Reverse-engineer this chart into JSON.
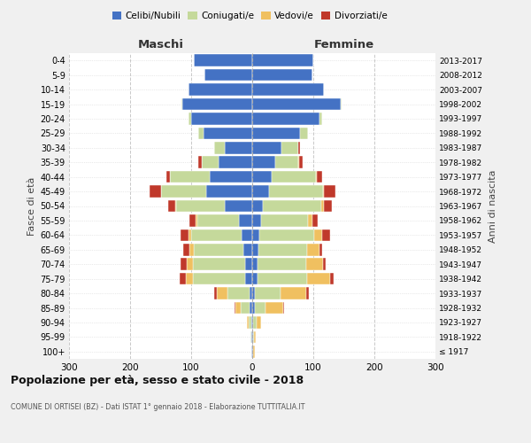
{
  "age_groups": [
    "100+",
    "95-99",
    "90-94",
    "85-89",
    "80-84",
    "75-79",
    "70-74",
    "65-69",
    "60-64",
    "55-59",
    "50-54",
    "45-49",
    "40-44",
    "35-39",
    "30-34",
    "25-29",
    "20-24",
    "15-19",
    "10-14",
    "5-9",
    "0-4"
  ],
  "birth_years": [
    "≤ 1917",
    "1918-1922",
    "1923-1927",
    "1928-1932",
    "1933-1937",
    "1938-1942",
    "1943-1947",
    "1948-1952",
    "1953-1957",
    "1958-1962",
    "1963-1967",
    "1968-1972",
    "1973-1977",
    "1978-1982",
    "1983-1987",
    "1988-1992",
    "1993-1997",
    "1998-2002",
    "2003-2007",
    "2008-2012",
    "2013-2017"
  ],
  "maschi": {
    "celibi": [
      2,
      2,
      2,
      4,
      5,
      12,
      12,
      14,
      18,
      22,
      45,
      75,
      70,
      55,
      45,
      80,
      100,
      115,
      105,
      78,
      95
    ],
    "coniugati": [
      0,
      1,
      4,
      15,
      35,
      85,
      85,
      82,
      82,
      68,
      80,
      75,
      65,
      28,
      18,
      8,
      4,
      1,
      0,
      0,
      0
    ],
    "vedovi": [
      0,
      0,
      2,
      8,
      18,
      12,
      10,
      7,
      4,
      3,
      1,
      0,
      0,
      0,
      0,
      0,
      0,
      0,
      0,
      0,
      0
    ],
    "divorziati": [
      0,
      0,
      0,
      2,
      4,
      10,
      10,
      10,
      14,
      10,
      12,
      18,
      5,
      5,
      0,
      0,
      0,
      0,
      0,
      0,
      0
    ]
  },
  "femmine": {
    "nubili": [
      2,
      2,
      2,
      4,
      5,
      8,
      8,
      10,
      12,
      14,
      18,
      28,
      32,
      38,
      48,
      78,
      110,
      145,
      118,
      98,
      100
    ],
    "coniugate": [
      0,
      1,
      5,
      18,
      42,
      82,
      80,
      80,
      90,
      78,
      95,
      88,
      72,
      38,
      28,
      14,
      4,
      1,
      0,
      0,
      0
    ],
    "vedove": [
      2,
      3,
      8,
      28,
      42,
      38,
      28,
      20,
      12,
      7,
      4,
      2,
      2,
      1,
      0,
      0,
      0,
      0,
      0,
      0,
      0
    ],
    "divorziate": [
      0,
      0,
      0,
      2,
      4,
      5,
      5,
      5,
      14,
      8,
      14,
      18,
      8,
      5,
      2,
      0,
      0,
      0,
      0,
      0,
      0
    ]
  },
  "colors": {
    "celibi_nubili": "#4472c4",
    "coniugati": "#c5d99b",
    "vedovi": "#f0c060",
    "divorziati": "#c0392b"
  },
  "title": "Popolazione per età, sesso e stato civile - 2018",
  "subtitle": "COMUNE DI ORTISEI (BZ) - Dati ISTAT 1° gennaio 2018 - Elaborazione TUTTITALIA.IT",
  "xlabel_left": "Maschi",
  "xlabel_right": "Femmine",
  "ylabel_left": "Fasce di età",
  "ylabel_right": "Anni di nascita",
  "xlim": 300,
  "bg_color": "#f0f0f0",
  "plot_bg": "#ffffff",
  "grid_color": "#bbbbbb"
}
